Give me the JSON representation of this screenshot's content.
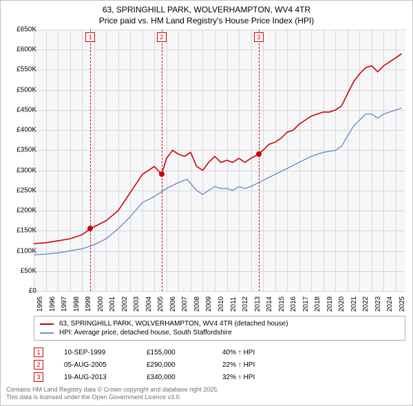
{
  "title_line1": "63, SPRINGHILL PARK, WOLVERHAMPTON, WV4 4TR",
  "title_line2": "Price paid vs. HM Land Registry's House Price Index (HPI)",
  "chart": {
    "type": "line",
    "background_color": "#f7f7f9",
    "grid_color": "#d6d6dc",
    "x": {
      "min": 1995,
      "max": 2025.8,
      "ticks": [
        1995,
        1996,
        1997,
        1998,
        1999,
        2000,
        2001,
        2002,
        2003,
        2004,
        2005,
        2006,
        2007,
        2008,
        2009,
        2010,
        2011,
        2012,
        2013,
        2014,
        2015,
        2016,
        2017,
        2018,
        2019,
        2020,
        2021,
        2022,
        2023,
        2024,
        2025
      ]
    },
    "y": {
      "min": 0,
      "max": 650000,
      "step": 50000,
      "prefix": "£",
      "suffix": "K",
      "ticks": [
        0,
        50000,
        100000,
        150000,
        200000,
        250000,
        300000,
        350000,
        400000,
        450000,
        500000,
        550000,
        600000,
        650000
      ]
    },
    "series": [
      {
        "name": "price-paid",
        "label": "63, SPRINGHILL PARK, WOLVERHAMPTON, WV4 4TR (detached house)",
        "color": "#cc0000",
        "line_width": 1.6,
        "points": [
          [
            1995.0,
            118000
          ],
          [
            1996.0,
            120000
          ],
          [
            1997.0,
            125000
          ],
          [
            1998.0,
            130000
          ],
          [
            1999.0,
            140000
          ],
          [
            1999.7,
            155000
          ],
          [
            2000.0,
            160000
          ],
          [
            2001.0,
            175000
          ],
          [
            2002.0,
            200000
          ],
          [
            2003.0,
            245000
          ],
          [
            2004.0,
            290000
          ],
          [
            2005.0,
            310000
          ],
          [
            2005.6,
            290000
          ],
          [
            2006.0,
            330000
          ],
          [
            2006.5,
            350000
          ],
          [
            2007.0,
            340000
          ],
          [
            2007.5,
            335000
          ],
          [
            2008.0,
            345000
          ],
          [
            2008.5,
            310000
          ],
          [
            2009.0,
            300000
          ],
          [
            2009.5,
            320000
          ],
          [
            2010.0,
            335000
          ],
          [
            2010.5,
            320000
          ],
          [
            2011.0,
            325000
          ],
          [
            2011.5,
            320000
          ],
          [
            2012.0,
            330000
          ],
          [
            2012.5,
            320000
          ],
          [
            2013.0,
            330000
          ],
          [
            2013.6,
            340000
          ],
          [
            2014.0,
            350000
          ],
          [
            2014.5,
            365000
          ],
          [
            2015.0,
            370000
          ],
          [
            2015.5,
            380000
          ],
          [
            2016.0,
            395000
          ],
          [
            2016.5,
            400000
          ],
          [
            2017.0,
            415000
          ],
          [
            2017.5,
            425000
          ],
          [
            2018.0,
            435000
          ],
          [
            2018.5,
            440000
          ],
          [
            2019.0,
            445000
          ],
          [
            2019.5,
            445000
          ],
          [
            2020.0,
            450000
          ],
          [
            2020.5,
            460000
          ],
          [
            2021.0,
            490000
          ],
          [
            2021.5,
            520000
          ],
          [
            2022.0,
            540000
          ],
          [
            2022.5,
            555000
          ],
          [
            2023.0,
            560000
          ],
          [
            2023.5,
            545000
          ],
          [
            2024.0,
            560000
          ],
          [
            2024.5,
            570000
          ],
          [
            2025.0,
            580000
          ],
          [
            2025.5,
            590000
          ]
        ]
      },
      {
        "name": "hpi",
        "label": "HPI: Average price, detached house, South Staffordshire",
        "color": "#6b8fc4",
        "line_width": 1.4,
        "points": [
          [
            1995.0,
            90000
          ],
          [
            1996.0,
            92000
          ],
          [
            1997.0,
            95000
          ],
          [
            1998.0,
            100000
          ],
          [
            1999.0,
            105000
          ],
          [
            2000.0,
            115000
          ],
          [
            2001.0,
            130000
          ],
          [
            2002.0,
            155000
          ],
          [
            2003.0,
            185000
          ],
          [
            2004.0,
            220000
          ],
          [
            2005.0,
            235000
          ],
          [
            2006.0,
            255000
          ],
          [
            2007.0,
            270000
          ],
          [
            2007.7,
            278000
          ],
          [
            2008.5,
            250000
          ],
          [
            2009.0,
            240000
          ],
          [
            2009.5,
            250000
          ],
          [
            2010.0,
            260000
          ],
          [
            2010.5,
            255000
          ],
          [
            2011.0,
            255000
          ],
          [
            2011.5,
            250000
          ],
          [
            2012.0,
            260000
          ],
          [
            2012.5,
            255000
          ],
          [
            2013.0,
            260000
          ],
          [
            2014.0,
            275000
          ],
          [
            2015.0,
            290000
          ],
          [
            2016.0,
            305000
          ],
          [
            2017.0,
            320000
          ],
          [
            2018.0,
            335000
          ],
          [
            2019.0,
            345000
          ],
          [
            2020.0,
            350000
          ],
          [
            2020.5,
            360000
          ],
          [
            2021.0,
            385000
          ],
          [
            2021.5,
            410000
          ],
          [
            2022.0,
            425000
          ],
          [
            2022.5,
            440000
          ],
          [
            2023.0,
            440000
          ],
          [
            2023.5,
            430000
          ],
          [
            2024.0,
            440000
          ],
          [
            2024.5,
            445000
          ],
          [
            2025.0,
            450000
          ],
          [
            2025.5,
            455000
          ]
        ]
      }
    ],
    "markers": [
      {
        "n": "1",
        "year": 1999.7,
        "value": 155000
      },
      {
        "n": "2",
        "year": 2005.6,
        "value": 290000
      },
      {
        "n": "3",
        "year": 2013.63,
        "value": 340000
      }
    ]
  },
  "legend": [
    {
      "color": "#cc0000",
      "text": "63, SPRINGHILL PARK, WOLVERHAMPTON, WV4 4TR (detached house)"
    },
    {
      "color": "#6b8fc4",
      "text": "HPI: Average price, detached house, South Staffordshire"
    }
  ],
  "marker_table": [
    {
      "n": "1",
      "date": "10-SEP-1999",
      "price": "£155,000",
      "pct": "40% ↑ HPI"
    },
    {
      "n": "2",
      "date": "05-AUG-2005",
      "price": "£290,000",
      "pct": "22% ↑ HPI"
    },
    {
      "n": "3",
      "date": "19-AUG-2013",
      "price": "£340,000",
      "pct": "32% ↑ HPI"
    }
  ],
  "footer_line1": "Contains HM Land Registry data © Crown copyright and database right 2025.",
  "footer_line2": "This data is licensed under the Open Government Licence v3.0."
}
